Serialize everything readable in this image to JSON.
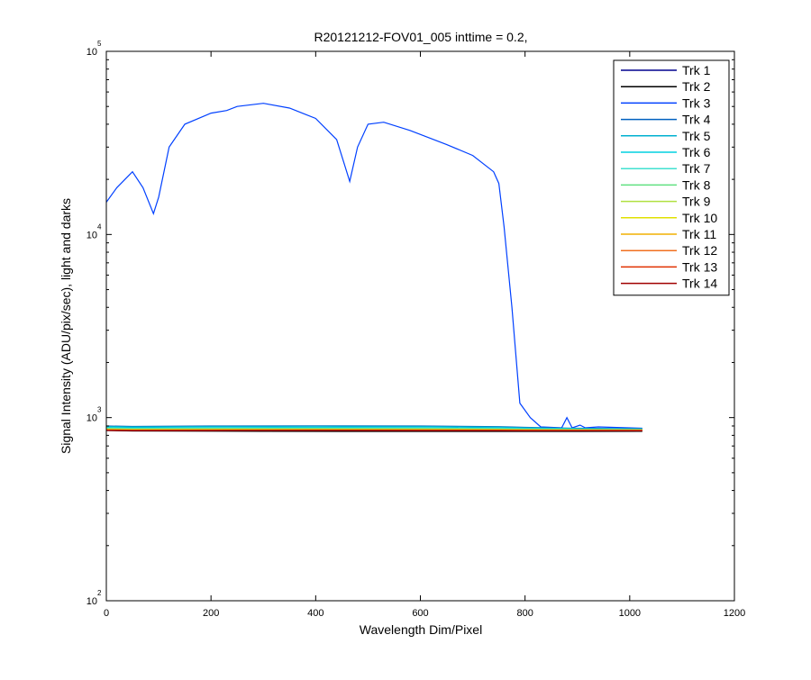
{
  "chart_data": {
    "type": "line",
    "title": "R20121212-FOV01_005 inttime = 0.2,",
    "xlabel": "Wavelength Dim/Pixel",
    "ylabel": "Signal Intensity (ADU/pix/sec), light and darks",
    "xlim": [
      0,
      1200
    ],
    "ylim": [
      100,
      100000
    ],
    "yscale": "log",
    "grid": false,
    "legend_position": "top-right",
    "x_ticks": [
      "0",
      "200",
      "400",
      "600",
      "800",
      "1000",
      "1200"
    ],
    "y_ticks": [
      {
        "base": "10",
        "exp": "2"
      },
      {
        "base": "10",
        "exp": "3"
      },
      {
        "base": "10",
        "exp": "4"
      },
      {
        "base": "10",
        "exp": "5"
      }
    ],
    "series": [
      {
        "name": "Trk 1",
        "color": "#00008F",
        "points": [
          [
            0,
            880
          ],
          [
            50,
            870
          ],
          [
            150,
            866
          ],
          [
            300,
            864
          ],
          [
            500,
            862
          ],
          [
            700,
            862
          ],
          [
            800,
            861
          ],
          [
            900,
            861
          ],
          [
            1024,
            862
          ]
        ]
      },
      {
        "name": "Trk 2",
        "color": "#000000",
        "points": [
          [
            0,
            850
          ],
          [
            50,
            845
          ],
          [
            150,
            843
          ],
          [
            300,
            842
          ],
          [
            500,
            841
          ],
          [
            700,
            841
          ],
          [
            800,
            841
          ],
          [
            900,
            841
          ],
          [
            1024,
            842
          ]
        ]
      },
      {
        "name": "Trk 3",
        "color": "#0040FF",
        "points": [
          [
            0,
            15000
          ],
          [
            20,
            18000
          ],
          [
            50,
            22000
          ],
          [
            70,
            18000
          ],
          [
            90,
            13000
          ],
          [
            100,
            16000
          ],
          [
            120,
            30000
          ],
          [
            150,
            40000
          ],
          [
            200,
            46000
          ],
          [
            230,
            47500
          ],
          [
            250,
            50000
          ],
          [
            300,
            52000
          ],
          [
            350,
            49000
          ],
          [
            400,
            43000
          ],
          [
            440,
            33000
          ],
          [
            465,
            19500
          ],
          [
            480,
            30000
          ],
          [
            500,
            40000
          ],
          [
            530,
            41000
          ],
          [
            580,
            37000
          ],
          [
            650,
            31000
          ],
          [
            700,
            27000
          ],
          [
            740,
            22000
          ],
          [
            750,
            19000
          ],
          [
            760,
            11000
          ],
          [
            775,
            4000
          ],
          [
            790,
            1200
          ],
          [
            810,
            1000
          ],
          [
            830,
            890
          ],
          [
            870,
            880
          ],
          [
            880,
            1000
          ],
          [
            890,
            880
          ],
          [
            905,
            910
          ],
          [
            915,
            880
          ],
          [
            940,
            890
          ],
          [
            1024,
            875
          ]
        ]
      },
      {
        "name": "Trk 4",
        "color": "#0060BF",
        "points": [
          [
            0,
            900
          ],
          [
            50,
            895
          ],
          [
            200,
            900
          ],
          [
            400,
            902
          ],
          [
            600,
            900
          ],
          [
            750,
            893
          ],
          [
            800,
            885
          ],
          [
            900,
            875
          ],
          [
            1024,
            870
          ]
        ]
      },
      {
        "name": "Trk 5",
        "color": "#00B0D0",
        "points": [
          [
            0,
            895
          ],
          [
            50,
            890
          ],
          [
            200,
            895
          ],
          [
            400,
            897
          ],
          [
            600,
            895
          ],
          [
            750,
            888
          ],
          [
            800,
            880
          ],
          [
            900,
            872
          ],
          [
            1024,
            868
          ]
        ]
      },
      {
        "name": "Trk 6",
        "color": "#00D0E0",
        "points": [
          [
            0,
            885
          ],
          [
            50,
            880
          ],
          [
            200,
            883
          ],
          [
            400,
            885
          ],
          [
            600,
            883
          ],
          [
            750,
            878
          ],
          [
            800,
            872
          ],
          [
            900,
            867
          ],
          [
            1024,
            865
          ]
        ]
      },
      {
        "name": "Trk 7",
        "color": "#40E0D0",
        "points": [
          [
            0,
            878
          ],
          [
            50,
            873
          ],
          [
            200,
            876
          ],
          [
            400,
            877
          ],
          [
            600,
            876
          ],
          [
            750,
            872
          ],
          [
            800,
            868
          ],
          [
            900,
            864
          ],
          [
            1024,
            862
          ]
        ]
      },
      {
        "name": "Trk 8",
        "color": "#60E080",
        "points": [
          [
            0,
            872
          ],
          [
            50,
            868
          ],
          [
            200,
            870
          ],
          [
            400,
            871
          ],
          [
            600,
            870
          ],
          [
            750,
            867
          ],
          [
            800,
            864
          ],
          [
            900,
            861
          ],
          [
            1024,
            860
          ]
        ]
      },
      {
        "name": "Trk 9",
        "color": "#B0E040",
        "points": [
          [
            0,
            868
          ],
          [
            50,
            864
          ],
          [
            200,
            866
          ],
          [
            400,
            867
          ],
          [
            600,
            866
          ],
          [
            750,
            864
          ],
          [
            800,
            861
          ],
          [
            900,
            859
          ],
          [
            1024,
            858
          ]
        ]
      },
      {
        "name": "Trk 10",
        "color": "#E0E000",
        "points": [
          [
            0,
            864
          ],
          [
            50,
            860
          ],
          [
            200,
            862
          ],
          [
            400,
            863
          ],
          [
            600,
            862
          ],
          [
            750,
            860
          ],
          [
            800,
            858
          ],
          [
            900,
            856
          ],
          [
            1024,
            856
          ]
        ]
      },
      {
        "name": "Trk 11",
        "color": "#F0B000",
        "points": [
          [
            0,
            860
          ],
          [
            50,
            857
          ],
          [
            200,
            858
          ],
          [
            400,
            859
          ],
          [
            600,
            858
          ],
          [
            750,
            857
          ],
          [
            800,
            855
          ],
          [
            900,
            854
          ],
          [
            1024,
            854
          ]
        ]
      },
      {
        "name": "Trk 12",
        "color": "#F07020",
        "points": [
          [
            0,
            857
          ],
          [
            50,
            854
          ],
          [
            200,
            855
          ],
          [
            400,
            856
          ],
          [
            600,
            855
          ],
          [
            750,
            854
          ],
          [
            800,
            853
          ],
          [
            900,
            852
          ],
          [
            1024,
            852
          ]
        ]
      },
      {
        "name": "Trk 13",
        "color": "#E03000",
        "points": [
          [
            0,
            854
          ],
          [
            50,
            851
          ],
          [
            200,
            852
          ],
          [
            400,
            853
          ],
          [
            600,
            852
          ],
          [
            750,
            851
          ],
          [
            800,
            850
          ],
          [
            900,
            850
          ],
          [
            1024,
            850
          ]
        ]
      },
      {
        "name": "Trk 14",
        "color": "#A00000",
        "points": [
          [
            0,
            851
          ],
          [
            50,
            848
          ],
          [
            200,
            849
          ],
          [
            400,
            850
          ],
          [
            600,
            849
          ],
          [
            750,
            848
          ],
          [
            800,
            847
          ],
          [
            900,
            847
          ],
          [
            1024,
            847
          ]
        ]
      }
    ]
  }
}
